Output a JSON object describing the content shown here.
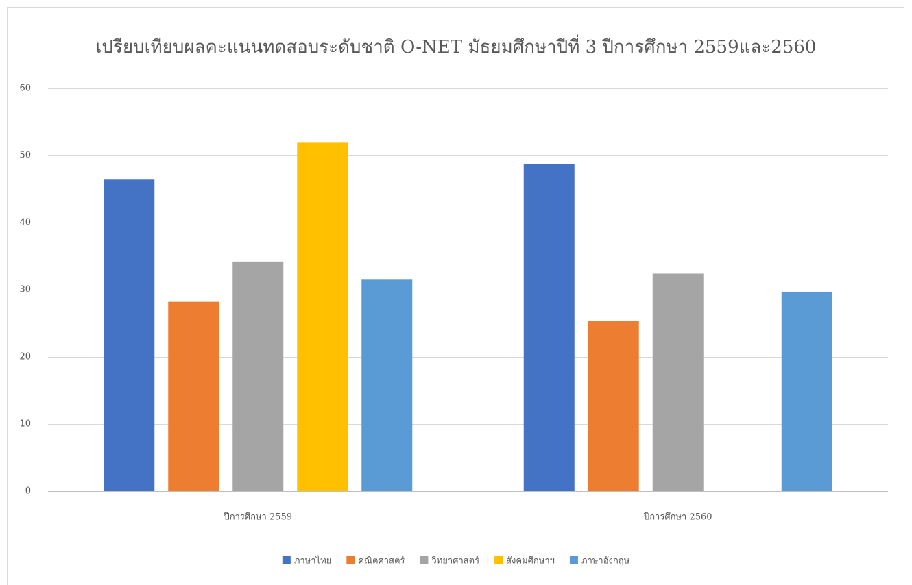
{
  "chart_data": {
    "type": "bar",
    "title": "เปรียบเทียบผลคะแนนทดสอบระดับชาติ O-NET มัธยมศึกษาปีที่ 3 ปีการศึกษา 2559และ2560",
    "categories": [
      "ปีการศึกษา 2559",
      "ปีการศึกษา 2560"
    ],
    "series": [
      {
        "name": "ภาษาไทย",
        "color": "#4472c4",
        "values": [
          46.4,
          48.7
        ]
      },
      {
        "name": "คณิตศาสตร์",
        "color": "#ed7d31",
        "values": [
          28.2,
          25.4
        ]
      },
      {
        "name": "วิทยาศาสตร์",
        "color": "#a5a5a5",
        "values": [
          34.2,
          32.4
        ]
      },
      {
        "name": "สังคมศึกษาฯ",
        "color": "#ffc000",
        "values": [
          51.9,
          null
        ]
      },
      {
        "name": "ภาษาอังกฤษ",
        "color": "#5b9bd5",
        "values": [
          31.5,
          29.7
        ]
      }
    ],
    "ylim": [
      0,
      60
    ],
    "yticks": [
      0,
      10,
      20,
      30,
      40,
      50,
      60
    ],
    "grid": true,
    "legend": "bottom"
  }
}
